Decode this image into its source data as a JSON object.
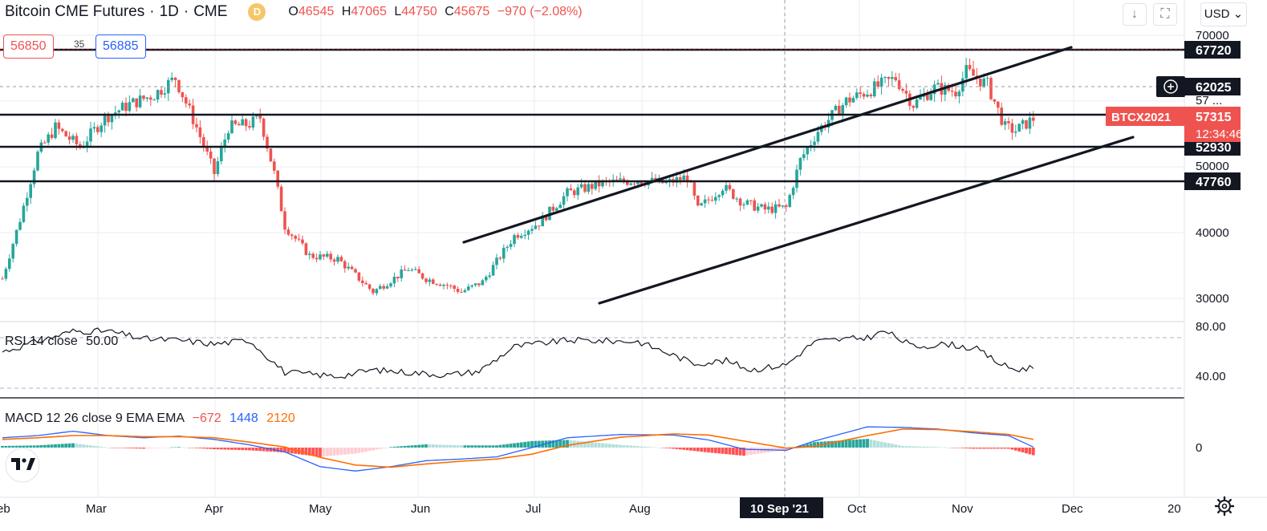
{
  "legend": {
    "symbol_title": "Bitcoin CME Futures",
    "interval": "1D",
    "exchange": "CME",
    "delayed_badge": "D",
    "open_label": "O",
    "open": "46545",
    "high_label": "H",
    "high": "47065",
    "low_label": "L",
    "low": "44750",
    "close_label": "C",
    "close": "45675",
    "change": "−970 (−2.08%)"
  },
  "order": {
    "sell_price": "56850",
    "spread": "35",
    "buy_price": "56885"
  },
  "toolbar": {
    "currency": "USD",
    "down_icon": "arrow-down-icon",
    "fullscreen_icon": "fullscreen-icon"
  },
  "colors": {
    "up": "#26a69a",
    "down": "#ef5350",
    "rsi": "#131722",
    "macd": "#2962ff",
    "signal": "#ff6d00",
    "grid": "#eceef2"
  },
  "chart_data": {
    "type": "candlestick",
    "title": "Bitcoin CME Futures · 1D · CME",
    "x_ticks": [
      "Feb",
      "Mar",
      "Apr",
      "May",
      "Jun",
      "Jul",
      "Aug",
      "10 Sep '21",
      "Oct",
      "Nov",
      "Dec",
      "20"
    ],
    "y_ticks": [
      "70000",
      "40000",
      "30000"
    ],
    "ylim": [
      26500,
      72000
    ],
    "horizontal_levels": [
      {
        "value": 67720,
        "label": "67720"
      },
      {
        "value": 57315,
        "label": "57315"
      },
      {
        "value": 52930,
        "label": "52930"
      },
      {
        "value": 47760,
        "label": "47760"
      }
    ],
    "dashed_levels": [
      {
        "value": 62025,
        "label": "62025"
      },
      {
        "value": 56850,
        "label": "56850"
      }
    ],
    "crosshair_price": "62025",
    "current": {
      "symbol": "BTCX2021",
      "price": "57315",
      "countdown": "12:34:46"
    },
    "hidden_axis_labels": [
      "57 ...",
      "50000"
    ],
    "trendlines": [
      {
        "name": "channel-upper",
        "from": [
          78,
          38500
        ],
        "to": [
          236,
          68000
        ]
      },
      {
        "name": "channel-lower",
        "from": [
          89,
          29500
        ],
        "to": [
          252,
          55500
        ]
      }
    ],
    "key_points": [
      [
        0,
        33000
      ],
      [
        5,
        42000
      ],
      [
        10,
        52000
      ],
      [
        15,
        56000
      ],
      [
        22,
        53000
      ],
      [
        29,
        57500
      ],
      [
        36,
        59500
      ],
      [
        43,
        61000
      ],
      [
        49,
        63500
      ],
      [
        55,
        56000
      ],
      [
        60,
        49000
      ],
      [
        64,
        56000
      ],
      [
        70,
        56500
      ],
      [
        73,
        57500
      ],
      [
        77,
        49000
      ],
      [
        80,
        41000
      ],
      [
        87,
        36500
      ],
      [
        95,
        36000
      ],
      [
        105,
        31000
      ],
      [
        115,
        34500
      ],
      [
        120,
        33000
      ],
      [
        126,
        32000
      ],
      [
        130,
        31000
      ],
      [
        136,
        32500
      ],
      [
        145,
        39500
      ],
      [
        152,
        41500
      ],
      [
        160,
        46000
      ],
      [
        170,
        47500
      ],
      [
        180,
        48000
      ],
      [
        188,
        47500
      ],
      [
        194,
        48500
      ],
      [
        197,
        43500
      ],
      [
        204,
        47000
      ],
      [
        210,
        44500
      ],
      [
        216,
        43500
      ],
      [
        222,
        43800
      ],
      [
        226,
        51000
      ],
      [
        231,
        55500
      ],
      [
        239,
        60000
      ],
      [
        245,
        61500
      ],
      [
        253,
        63500
      ],
      [
        258,
        59500
      ],
      [
        264,
        62000
      ],
      [
        270,
        61500
      ],
      [
        273,
        64500
      ],
      [
        279,
        62500
      ],
      [
        284,
        56000
      ],
      [
        287,
        55500
      ],
      [
        292,
        57315
      ]
    ],
    "rsi": {
      "label": "RSI 14 close",
      "value": "50.00",
      "ticks": [
        "80.00",
        "40.00"
      ],
      "ylim": [
        30,
        86
      ],
      "points": [
        [
          0,
          62
        ],
        [
          10,
          70
        ],
        [
          20,
          78
        ],
        [
          30,
          78
        ],
        [
          40,
          72
        ],
        [
          50,
          71
        ],
        [
          60,
          68
        ],
        [
          70,
          71
        ],
        [
          80,
          46
        ],
        [
          95,
          43
        ],
        [
          105,
          48
        ],
        [
          115,
          46
        ],
        [
          126,
          44
        ],
        [
          135,
          47
        ],
        [
          145,
          66
        ],
        [
          160,
          71
        ],
        [
          180,
          70
        ],
        [
          196,
          53
        ],
        [
          205,
          55
        ],
        [
          212,
          48
        ],
        [
          222,
          52
        ],
        [
          230,
          70
        ],
        [
          245,
          73
        ],
        [
          250,
          78
        ],
        [
          258,
          66
        ],
        [
          268,
          68
        ],
        [
          276,
          64
        ],
        [
          283,
          52
        ],
        [
          287,
          48
        ],
        [
          292,
          50
        ]
      ]
    },
    "macd": {
      "label": "MACD 12 26 close 9 EMA EMA",
      "hist": "−672",
      "macd_value": "1448",
      "signal_value": "2120",
      "zero_tick": "0",
      "ylim": [
        -5000,
        5000
      ],
      "macd_points": [
        [
          0,
          1800
        ],
        [
          10,
          2200
        ],
        [
          20,
          3000
        ],
        [
          30,
          2200
        ],
        [
          40,
          1800
        ],
        [
          50,
          2100
        ],
        [
          60,
          1500
        ],
        [
          70,
          500
        ],
        [
          80,
          -800
        ],
        [
          90,
          -3500
        ],
        [
          100,
          -4300
        ],
        [
          110,
          -3500
        ],
        [
          120,
          -2400
        ],
        [
          130,
          -2100
        ],
        [
          140,
          -1700
        ],
        [
          150,
          0
        ],
        [
          160,
          1800
        ],
        [
          175,
          2400
        ],
        [
          190,
          2300
        ],
        [
          200,
          1400
        ],
        [
          210,
          -300
        ],
        [
          222,
          -500
        ],
        [
          230,
          1200
        ],
        [
          245,
          3800
        ],
        [
          255,
          3700
        ],
        [
          265,
          3400
        ],
        [
          275,
          2700
        ],
        [
          285,
          2200
        ],
        [
          292,
          100
        ]
      ],
      "signal_points": [
        [
          0,
          1500
        ],
        [
          10,
          1800
        ],
        [
          20,
          2200
        ],
        [
          30,
          2200
        ],
        [
          40,
          2000
        ],
        [
          50,
          2000
        ],
        [
          60,
          1800
        ],
        [
          70,
          1000
        ],
        [
          80,
          100
        ],
        [
          90,
          -1800
        ],
        [
          100,
          -3200
        ],
        [
          110,
          -3600
        ],
        [
          120,
          -3000
        ],
        [
          130,
          -2500
        ],
        [
          140,
          -2100
        ],
        [
          150,
          -1200
        ],
        [
          160,
          400
        ],
        [
          175,
          1900
        ],
        [
          190,
          2500
        ],
        [
          200,
          2300
        ],
        [
          210,
          1200
        ],
        [
          222,
          -100
        ],
        [
          230,
          200
        ],
        [
          245,
          2200
        ],
        [
          255,
          3400
        ],
        [
          265,
          3300
        ],
        [
          275,
          2900
        ],
        [
          285,
          2400
        ],
        [
          292,
          1500
        ]
      ]
    }
  }
}
